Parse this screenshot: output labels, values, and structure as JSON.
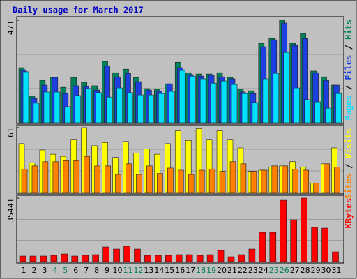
{
  "chart_data": [
    {
      "type": "bar",
      "title": "Daily usage for March 2017",
      "ylim": [
        0,
        471
      ],
      "yticks": [
        471
      ],
      "legend_separator": " / ",
      "series": [
        {
          "name": "Hits",
          "color": "#00805c",
          "values": [
            253,
            122,
            195,
            208,
            163,
            208,
            186,
            170,
            282,
            230,
            246,
            208,
            157,
            154,
            179,
            278,
            230,
            224,
            224,
            230,
            208,
            154,
            147,
            365,
            387,
            471,
            365,
            410,
            237,
            211,
            173
          ]
        },
        {
          "name": "Files",
          "color": "#1e3fe0",
          "values": [
            240,
            112,
            173,
            208,
            134,
            170,
            166,
            150,
            262,
            211,
            227,
            189,
            150,
            144,
            179,
            253,
            221,
            214,
            218,
            211,
            202,
            141,
            134,
            349,
            381,
            458,
            355,
            387,
            230,
            195,
            173
          ]
        },
        {
          "name": "Pages",
          "color": "#00e0ff",
          "values": [
            234,
            90,
            141,
            141,
            74,
            125,
            157,
            138,
            118,
            160,
            138,
            128,
            128,
            134,
            144,
            240,
            214,
            202,
            182,
            192,
            176,
            134,
            93,
            202,
            227,
            323,
            160,
            106,
            96,
            67,
            134
          ]
        }
      ]
    },
    {
      "type": "bar",
      "ylim": [
        0,
        61
      ],
      "yticks": [
        61
      ],
      "legend_separator": " / ",
      "series": [
        {
          "name": "Visits",
          "color": "#ffff00",
          "values": [
            46,
            28,
            40,
            36,
            34,
            50,
            61,
            44,
            47,
            33,
            48,
            37,
            41,
            36,
            46,
            58,
            49,
            60,
            50,
            58,
            50,
            42,
            20,
            21,
            24,
            25,
            29,
            24,
            9,
            27,
            42
          ]
        },
        {
          "name": "Sites",
          "color": "#ff8000",
          "values": [
            22,
            25,
            29,
            29,
            30,
            30,
            34,
            25,
            25,
            17,
            27,
            17,
            25,
            18,
            23,
            21,
            17,
            21,
            22,
            20,
            29,
            27,
            20,
            21,
            25,
            25,
            22,
            21,
            9,
            27,
            24
          ]
        }
      ]
    },
    {
      "type": "bar",
      "ylim": [
        0,
        35441
      ],
      "yticks": [
        35441
      ],
      "series": [
        {
          "name": "KBytes",
          "color": "#ff0000",
          "values": [
            3113,
            3113,
            3113,
            3500,
            4280,
            3113,
            3500,
            3890,
            8170,
            7000,
            8560,
            7000,
            3500,
            3500,
            3500,
            3890,
            3890,
            3500,
            3890,
            6230,
            2720,
            3890,
            7000,
            16340,
            16340,
            34240,
            23350,
            35441,
            19070,
            18680,
            5450
          ]
        }
      ],
      "categories": [
        "1",
        "2",
        "3",
        "4",
        "5",
        "6",
        "7",
        "8",
        "9",
        "10",
        "11",
        "12",
        "13",
        "14",
        "15",
        "16",
        "17",
        "18",
        "19",
        "20",
        "21",
        "22",
        "23",
        "24",
        "25",
        "26",
        "27",
        "28",
        "29",
        "30",
        "31"
      ],
      "category_colors": [
        "#000",
        "#000",
        "#000",
        "#00805c",
        "#00805c",
        "#000",
        "#000",
        "#000",
        "#000",
        "#000",
        "#00805c",
        "#00805c",
        "#000",
        "#000",
        "#000",
        "#000",
        "#000",
        "#00805c",
        "#00805c",
        "#000",
        "#000",
        "#000",
        "#000",
        "#000",
        "#00805c",
        "#00805c",
        "#000",
        "#000",
        "#000",
        "#000",
        "#000"
      ]
    }
  ]
}
